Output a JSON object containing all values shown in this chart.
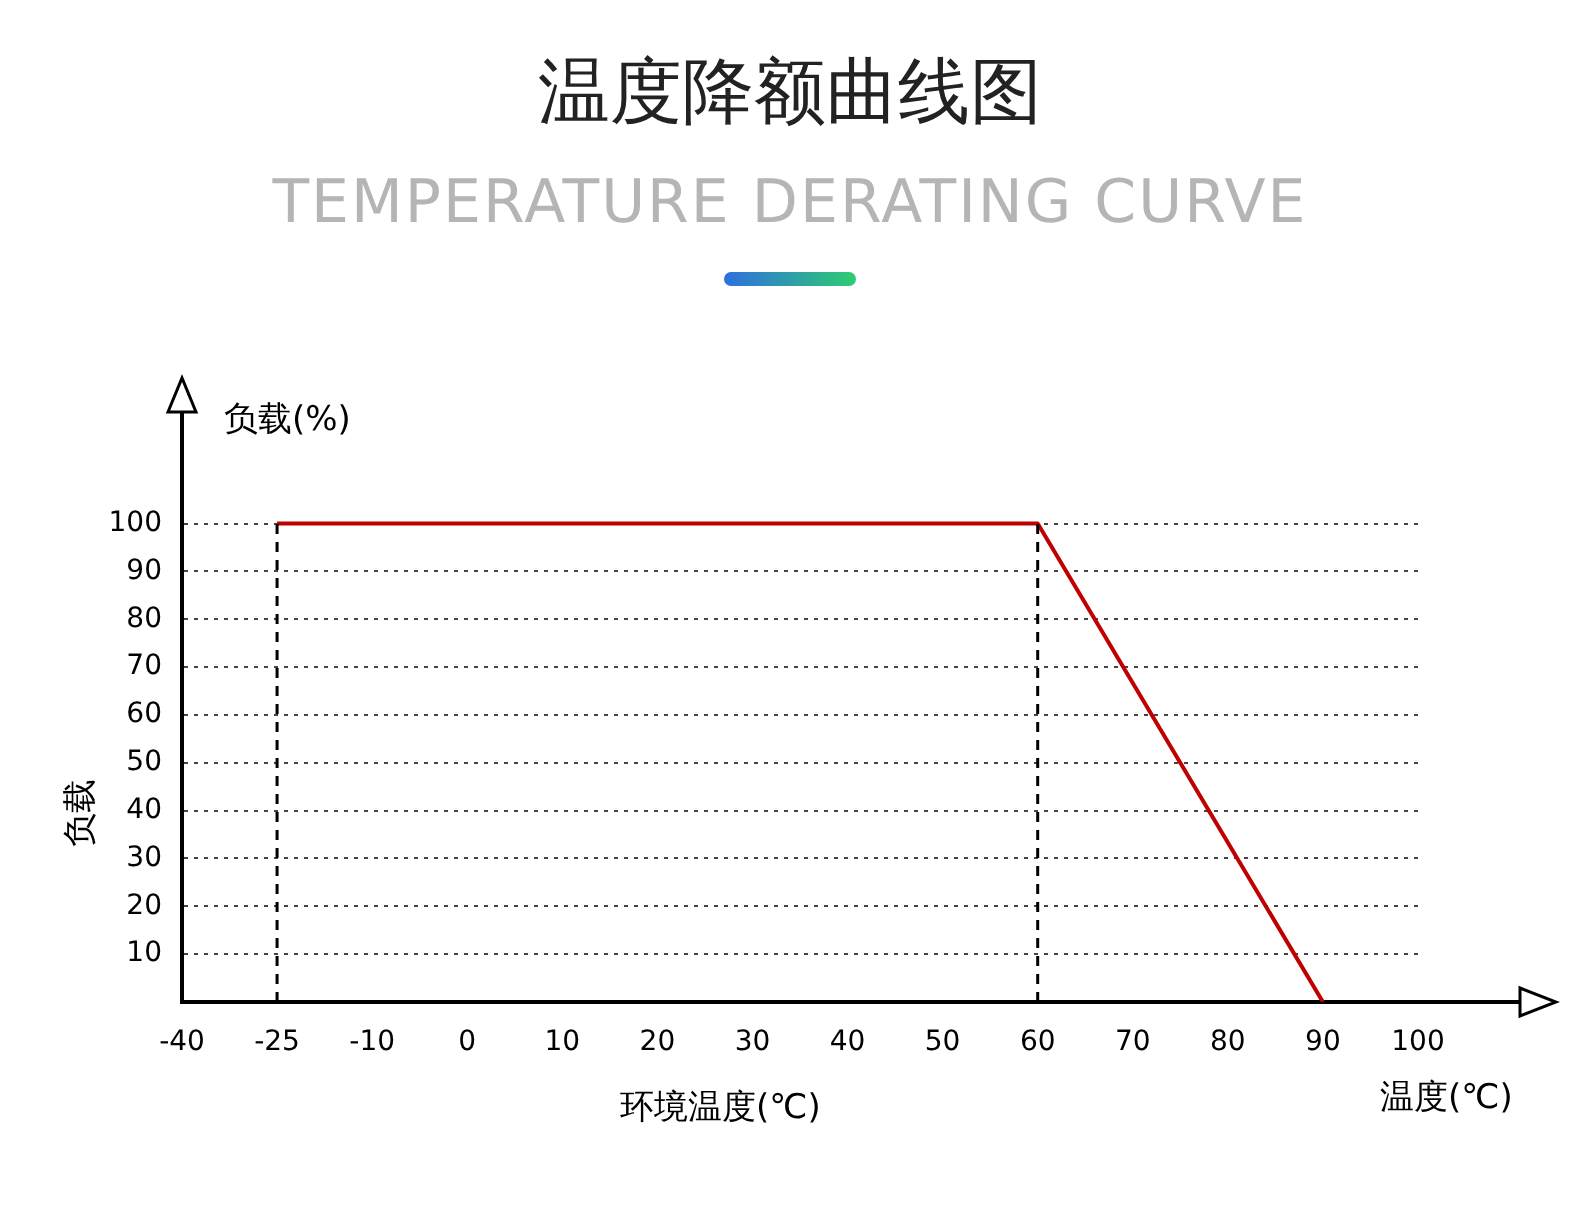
{
  "chart_data": {
    "type": "line",
    "title": "温度降额曲线图",
    "subtitle": "TEMPERATURE DERATING CURVE",
    "ylabel": "负载",
    "xlabel": "环境温度(℃)",
    "annotations": [
      "负载(%)",
      "温度(℃)"
    ],
    "categories": [
      "-40",
      "-25",
      "-10",
      "0",
      "10",
      "20",
      "30",
      "40",
      "50",
      "60",
      "70",
      "80",
      "90",
      "100"
    ],
    "series": [
      {
        "color": "#c00000",
        "values": [
          null,
          100,
          null,
          null,
          null,
          null,
          null,
          null,
          null,
          100,
          null,
          null,
          0,
          null
        ]
      }
    ],
    "ylim": [
      0,
      125
    ],
    "yticks": [
      10,
      20,
      30,
      40,
      50,
      60,
      70,
      80,
      90,
      100
    ],
    "ref_lines": [
      {
        "axis": "x",
        "value": "-25",
        "color": "#000000",
        "line_style": "dashed"
      },
      {
        "axis": "x",
        "value": "60",
        "color": "#000000",
        "line_style": "dashed"
      }
    ],
    "grid": "y",
    "legend": false,
    "marker": "none",
    "line_style": "solid"
  }
}
